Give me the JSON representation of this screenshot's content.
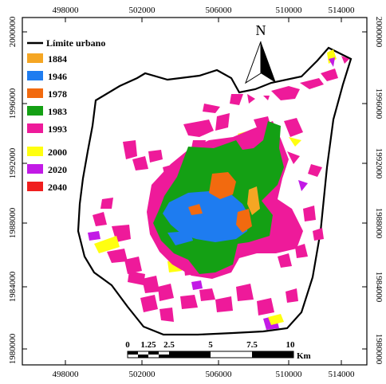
{
  "map": {
    "x_ticks": [
      "498000",
      "502000",
      "506000",
      "510000",
      "514000"
    ],
    "y_ticks": [
      "2000000",
      "1996000",
      "1992000",
      "1988000",
      "1984000",
      "1980000"
    ],
    "north_label": "N",
    "legend": {
      "boundary_label": "Límite urbano",
      "items": [
        {
          "label": "1884",
          "color": "#f5a623"
        },
        {
          "label": "1946",
          "color": "#1e7cf0"
        },
        {
          "label": "1978",
          "color": "#f26a0f"
        },
        {
          "label": "1983",
          "color": "#14a014"
        },
        {
          "label": "1993",
          "color": "#ee1a9a"
        },
        {
          "label": "2000",
          "color": "#ffff10"
        },
        {
          "label": "2020",
          "color": "#c21ae6"
        },
        {
          "label": "2040",
          "color": "#f01e1e"
        }
      ]
    },
    "scale": {
      "labels": [
        "0",
        "1.25",
        "2.5",
        "5",
        "7.5",
        "10"
      ],
      "unit": "Km"
    }
  }
}
